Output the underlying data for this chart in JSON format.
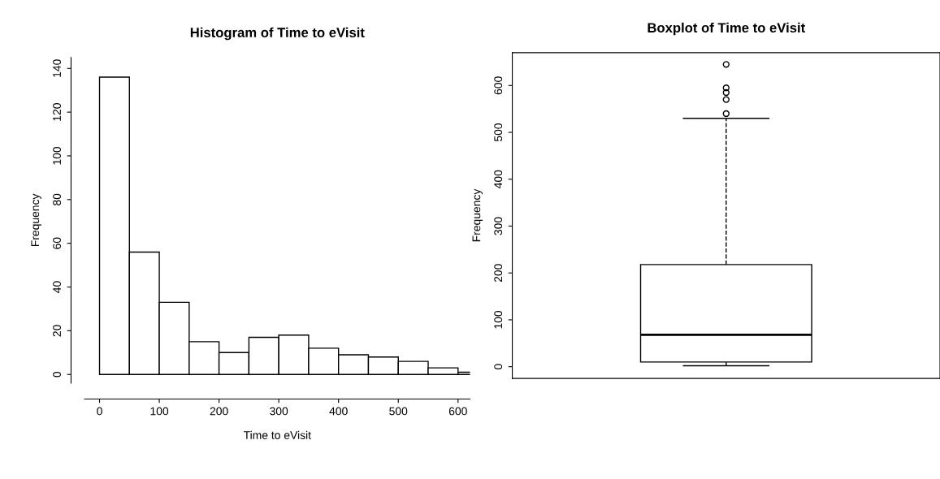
{
  "chart_data": [
    {
      "type": "histogram",
      "title": "Histogram of Time to eVisit",
      "xlabel": "Time to eVisit",
      "ylabel": "Frequency",
      "bins": [
        0,
        50,
        100,
        150,
        200,
        250,
        300,
        350,
        400,
        450,
        500,
        550,
        600,
        650
      ],
      "values": [
        136,
        56,
        33,
        15,
        10,
        17,
        18,
        12,
        9,
        8,
        6,
        3,
        1
      ],
      "color": "#ffffff",
      "xlim": [
        -25,
        620
      ],
      "ylim": [
        -4,
        145
      ],
      "xticks": [
        0,
        100,
        200,
        300,
        400,
        500,
        600
      ],
      "yticks": [
        0,
        20,
        40,
        60,
        80,
        100,
        120,
        140
      ],
      "grid": false
    },
    {
      "type": "box",
      "title": "Boxplot of Time to eVisit",
      "ylabel": "Frequency",
      "categories": [
        null
      ],
      "boxes": [
        {
          "low": 2,
          "q1": 10,
          "median": 68,
          "q3": 218,
          "high": 530,
          "outliers": [
            540,
            570,
            585,
            595,
            645
          ]
        }
      ],
      "color": "#ffffff",
      "ylim": [
        -25,
        670
      ],
      "yticks": [
        0,
        100,
        200,
        300,
        400,
        500,
        600
      ],
      "tick_labels": "y",
      "grid": false
    }
  ]
}
